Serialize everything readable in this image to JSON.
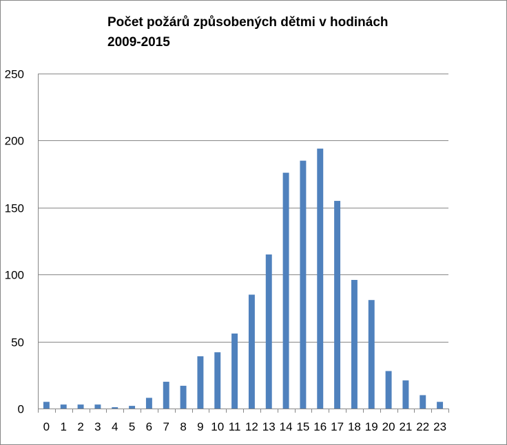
{
  "chart_data": {
    "type": "bar",
    "title_line1": "Počet požárů způsobených dětmi v hodinách",
    "title_line2": "2009-2015",
    "xlabel": "",
    "ylabel": "",
    "ylim": [
      0,
      250
    ],
    "yticks": [
      0,
      50,
      100,
      150,
      200,
      250
    ],
    "grid": true,
    "legend": "none",
    "bar_color": "#4f81bd",
    "categories": [
      "0",
      "1",
      "2",
      "3",
      "4",
      "5",
      "6",
      "7",
      "8",
      "9",
      "10",
      "11",
      "12",
      "13",
      "14",
      "15",
      "16",
      "17",
      "18",
      "19",
      "20",
      "21",
      "22",
      "23"
    ],
    "values": [
      5,
      3,
      3,
      3,
      1,
      2,
      8,
      20,
      17,
      39,
      42,
      56,
      85,
      115,
      176,
      185,
      194,
      155,
      96,
      81,
      28,
      21,
      10,
      5
    ]
  }
}
